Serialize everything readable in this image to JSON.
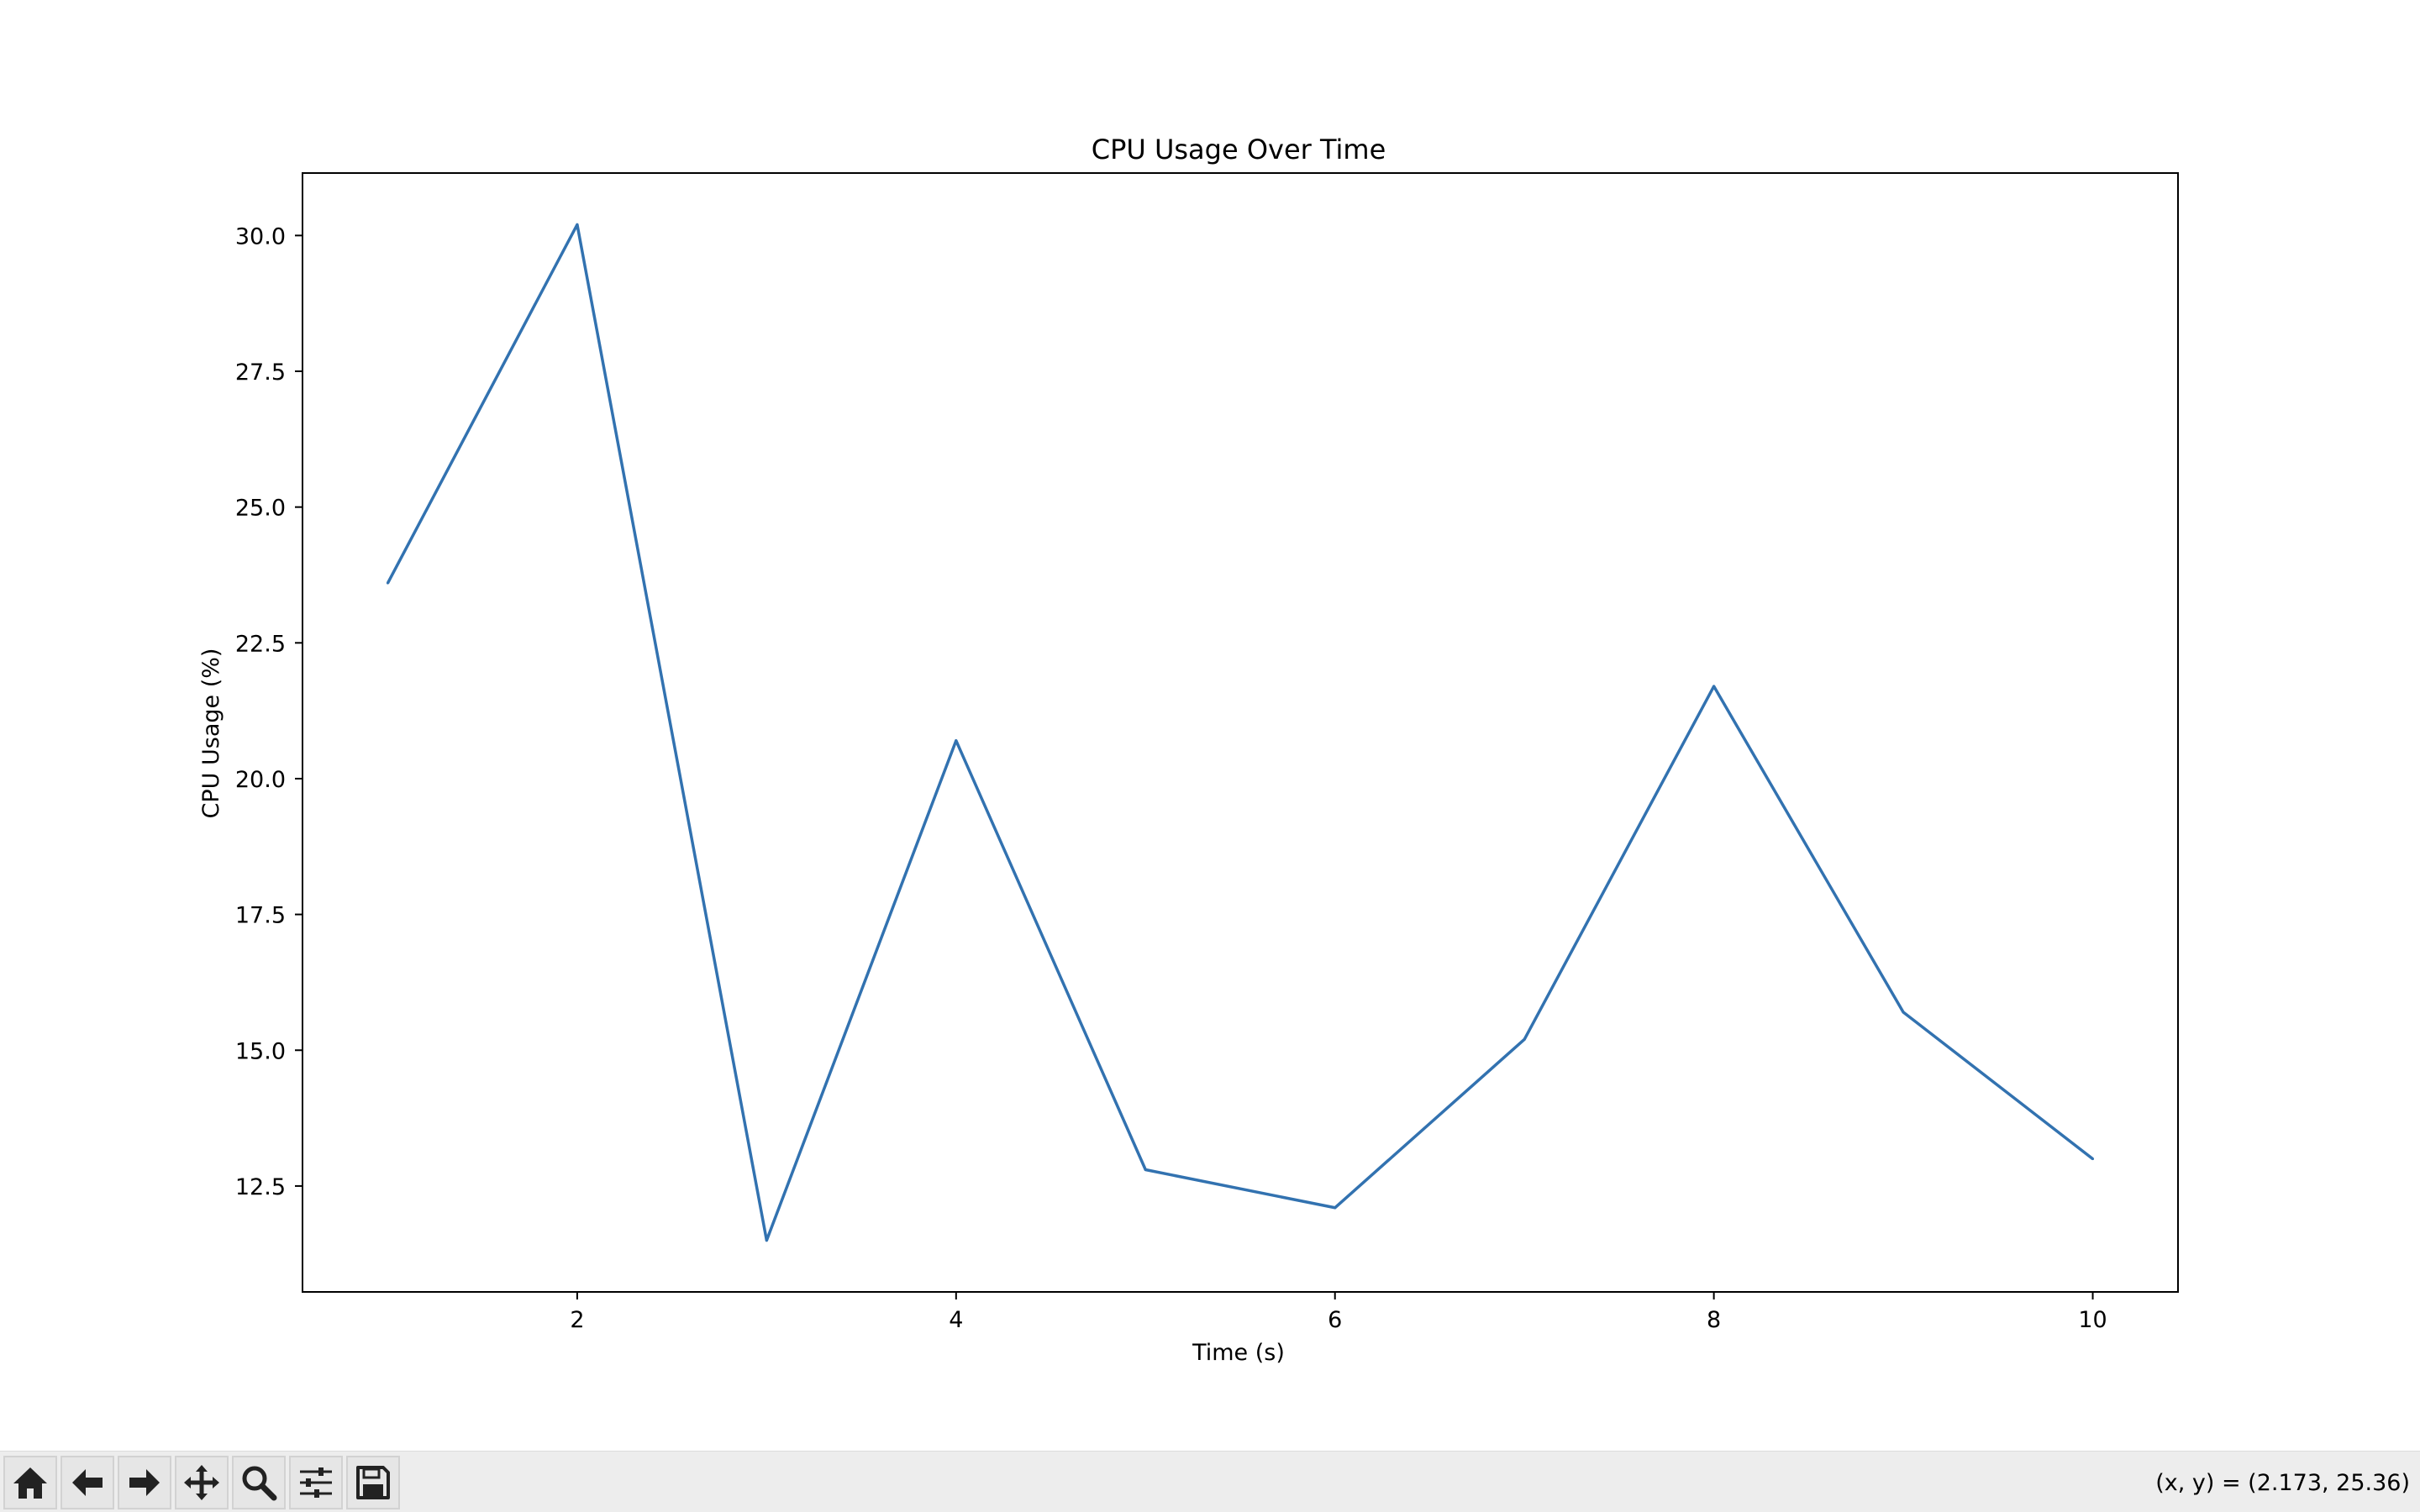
{
  "window": {
    "status_readout": "(x, y) = (2.173, 25.36)"
  },
  "toolbar": {
    "buttons": [
      {
        "name": "home",
        "icon": "home-icon"
      },
      {
        "name": "back",
        "icon": "back-arrow-icon"
      },
      {
        "name": "forward",
        "icon": "forward-arrow-icon"
      },
      {
        "name": "pan",
        "icon": "move-icon"
      },
      {
        "name": "zoom",
        "icon": "search-icon"
      },
      {
        "name": "configure-subplots",
        "icon": "sliders-icon"
      },
      {
        "name": "save",
        "icon": "save-icon"
      }
    ]
  },
  "chart_data": {
    "type": "line",
    "title": "CPU Usage Over Time",
    "xlabel": "Time (s)",
    "ylabel": "CPU Usage (%)",
    "x": [
      1,
      2,
      3,
      4,
      5,
      6,
      7,
      8,
      9,
      10
    ],
    "series": [
      {
        "values": [
          23.6,
          30.2,
          11.5,
          20.7,
          12.8,
          12.1,
          15.2,
          21.7,
          15.7,
          13.0
        ],
        "color": "#3272b0"
      }
    ],
    "xlim": [
      0.55,
      10.45
    ],
    "ylim": [
      10.55,
      31.15
    ],
    "xticks": [
      2,
      4,
      6,
      8,
      10
    ],
    "xtick_labels": [
      "2",
      "4",
      "6",
      "8",
      "10"
    ],
    "yticks": [
      12.5,
      15.0,
      17.5,
      20.0,
      22.5,
      25.0,
      27.5,
      30.0
    ],
    "ytick_labels": [
      "12.5",
      "15.0",
      "17.5",
      "20.0",
      "22.5",
      "25.0",
      "27.5",
      "30.0"
    ],
    "grid": false,
    "legend": "none"
  }
}
